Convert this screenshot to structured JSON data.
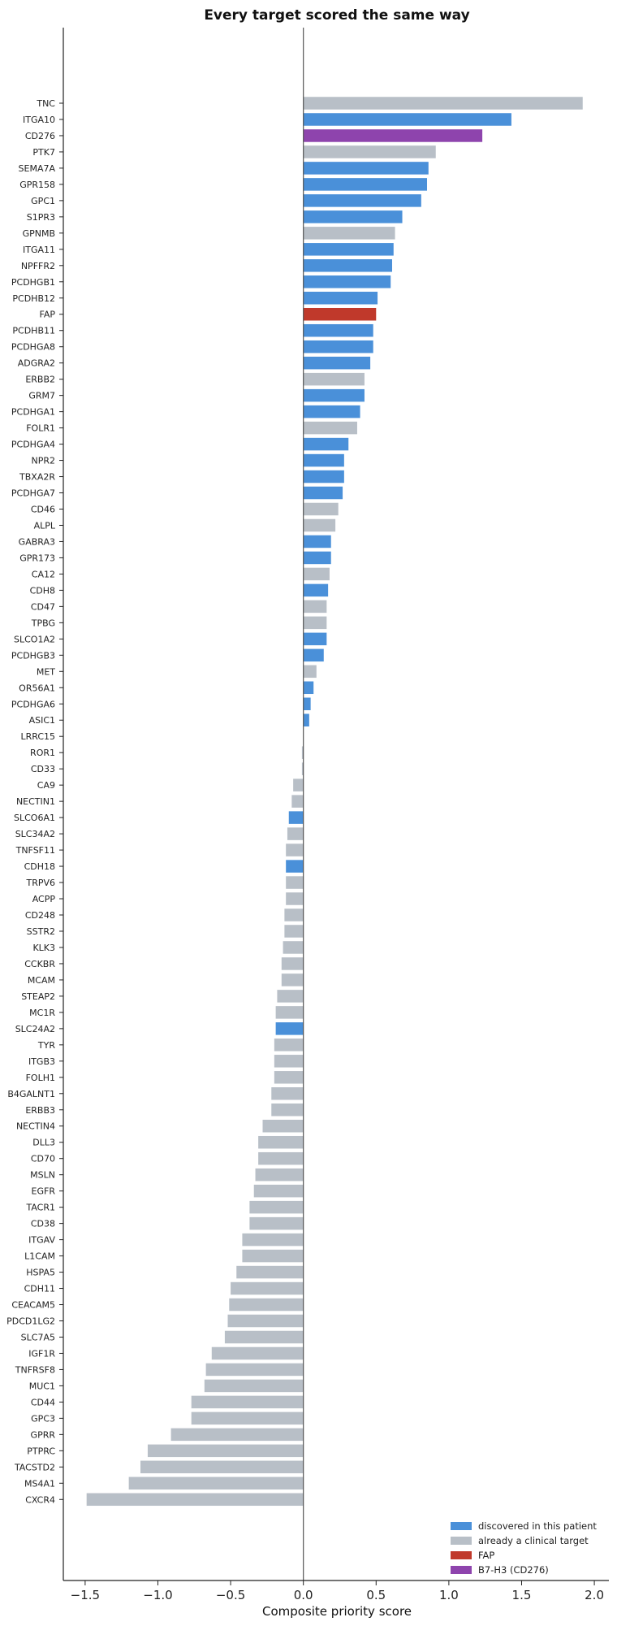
{
  "chart_data": {
    "type": "bar",
    "orientation": "horizontal",
    "title": "Every target scored the same way",
    "xlabel": "Composite priority score",
    "ylabel": "",
    "xlim": [
      -1.65,
      2.1
    ],
    "xticks": [
      -1.5,
      -1.0,
      -0.5,
      0.0,
      0.5,
      1.0,
      1.5,
      2.0
    ],
    "xtick_labels": [
      "−1.5",
      "−1.0",
      "−0.5",
      "0.0",
      "0.5",
      "1.0",
      "1.5",
      "2.0"
    ],
    "grid": false,
    "legend_position": "bottom-right",
    "colors": {
      "discovered": "#4a90d9",
      "clinical": "#b8bfc7",
      "fap": "#c0392b",
      "b7h3": "#8e44ad",
      "zero_line": "#555555",
      "axis": "#222222"
    },
    "legend": [
      {
        "key": "discovered",
        "label": "discovered in this patient"
      },
      {
        "key": "clinical",
        "label": "already a clinical target"
      },
      {
        "key": "fap",
        "label": "FAP"
      },
      {
        "key": "b7h3",
        "label": "B7-H3 (CD276)"
      }
    ],
    "bars": [
      {
        "label": "TNC",
        "value": 1.92,
        "group": "clinical"
      },
      {
        "label": "ITGA10",
        "value": 1.43,
        "group": "discovered"
      },
      {
        "label": "CD276",
        "value": 1.23,
        "group": "b7h3"
      },
      {
        "label": "PTK7",
        "value": 0.91,
        "group": "clinical"
      },
      {
        "label": "SEMA7A",
        "value": 0.86,
        "group": "discovered"
      },
      {
        "label": "GPR158",
        "value": 0.85,
        "group": "discovered"
      },
      {
        "label": "GPC1",
        "value": 0.81,
        "group": "discovered"
      },
      {
        "label": "S1PR3",
        "value": 0.68,
        "group": "discovered"
      },
      {
        "label": "GPNMB",
        "value": 0.63,
        "group": "clinical"
      },
      {
        "label": "ITGA11",
        "value": 0.62,
        "group": "discovered"
      },
      {
        "label": "NPFFR2",
        "value": 0.61,
        "group": "discovered"
      },
      {
        "label": "PCDHGB1",
        "value": 0.6,
        "group": "discovered"
      },
      {
        "label": "PCDHB12",
        "value": 0.51,
        "group": "discovered"
      },
      {
        "label": "FAP",
        "value": 0.5,
        "group": "fap"
      },
      {
        "label": "PCDHB11",
        "value": 0.48,
        "group": "discovered"
      },
      {
        "label": "PCDHGA8",
        "value": 0.48,
        "group": "discovered"
      },
      {
        "label": "ADGRA2",
        "value": 0.46,
        "group": "discovered"
      },
      {
        "label": "ERBB2",
        "value": 0.42,
        "group": "clinical"
      },
      {
        "label": "GRM7",
        "value": 0.42,
        "group": "discovered"
      },
      {
        "label": "PCDHGA1",
        "value": 0.39,
        "group": "discovered"
      },
      {
        "label": "FOLR1",
        "value": 0.37,
        "group": "clinical"
      },
      {
        "label": "PCDHGA4",
        "value": 0.31,
        "group": "discovered"
      },
      {
        "label": "NPR2",
        "value": 0.28,
        "group": "discovered"
      },
      {
        "label": "TBXA2R",
        "value": 0.28,
        "group": "discovered"
      },
      {
        "label": "PCDHGA7",
        "value": 0.27,
        "group": "discovered"
      },
      {
        "label": "CD46",
        "value": 0.24,
        "group": "clinical"
      },
      {
        "label": "ALPL",
        "value": 0.22,
        "group": "clinical"
      },
      {
        "label": "GABRA3",
        "value": 0.19,
        "group": "discovered"
      },
      {
        "label": "GPR173",
        "value": 0.19,
        "group": "discovered"
      },
      {
        "label": "CA12",
        "value": 0.18,
        "group": "clinical"
      },
      {
        "label": "CDH8",
        "value": 0.17,
        "group": "discovered"
      },
      {
        "label": "CD47",
        "value": 0.16,
        "group": "clinical"
      },
      {
        "label": "TPBG",
        "value": 0.16,
        "group": "clinical"
      },
      {
        "label": "SLCO1A2",
        "value": 0.16,
        "group": "discovered"
      },
      {
        "label": "PCDHGB3",
        "value": 0.14,
        "group": "discovered"
      },
      {
        "label": "MET",
        "value": 0.09,
        "group": "clinical"
      },
      {
        "label": "OR56A1",
        "value": 0.07,
        "group": "discovered"
      },
      {
        "label": "PCDHGA6",
        "value": 0.05,
        "group": "discovered"
      },
      {
        "label": "ASIC1",
        "value": 0.04,
        "group": "discovered"
      },
      {
        "label": "LRRC15",
        "value": 0.0,
        "group": "clinical"
      },
      {
        "label": "ROR1",
        "value": -0.01,
        "group": "clinical"
      },
      {
        "label": "CD33",
        "value": -0.01,
        "group": "clinical"
      },
      {
        "label": "CA9",
        "value": -0.07,
        "group": "clinical"
      },
      {
        "label": "NECTIN1",
        "value": -0.08,
        "group": "clinical"
      },
      {
        "label": "SLCO6A1",
        "value": -0.1,
        "group": "discovered"
      },
      {
        "label": "SLC34A2",
        "value": -0.11,
        "group": "clinical"
      },
      {
        "label": "TNFSF11",
        "value": -0.12,
        "group": "clinical"
      },
      {
        "label": "CDH18",
        "value": -0.12,
        "group": "discovered"
      },
      {
        "label": "TRPV6",
        "value": -0.12,
        "group": "clinical"
      },
      {
        "label": "ACPP",
        "value": -0.12,
        "group": "clinical"
      },
      {
        "label": "CD248",
        "value": -0.13,
        "group": "clinical"
      },
      {
        "label": "SSTR2",
        "value": -0.13,
        "group": "clinical"
      },
      {
        "label": "KLK3",
        "value": -0.14,
        "group": "clinical"
      },
      {
        "label": "CCKBR",
        "value": -0.15,
        "group": "clinical"
      },
      {
        "label": "MCAM",
        "value": -0.15,
        "group": "clinical"
      },
      {
        "label": "STEAP2",
        "value": -0.18,
        "group": "clinical"
      },
      {
        "label": "MC1R",
        "value": -0.19,
        "group": "clinical"
      },
      {
        "label": "SLC24A2",
        "value": -0.19,
        "group": "discovered"
      },
      {
        "label": "TYR",
        "value": -0.2,
        "group": "clinical"
      },
      {
        "label": "ITGB3",
        "value": -0.2,
        "group": "clinical"
      },
      {
        "label": "FOLH1",
        "value": -0.2,
        "group": "clinical"
      },
      {
        "label": "B4GALNT1",
        "value": -0.22,
        "group": "clinical"
      },
      {
        "label": "ERBB3",
        "value": -0.22,
        "group": "clinical"
      },
      {
        "label": "NECTIN4",
        "value": -0.28,
        "group": "clinical"
      },
      {
        "label": "DLL3",
        "value": -0.31,
        "group": "clinical"
      },
      {
        "label": "CD70",
        "value": -0.31,
        "group": "clinical"
      },
      {
        "label": "MSLN",
        "value": -0.33,
        "group": "clinical"
      },
      {
        "label": "EGFR",
        "value": -0.34,
        "group": "clinical"
      },
      {
        "label": "TACR1",
        "value": -0.37,
        "group": "clinical"
      },
      {
        "label": "CD38",
        "value": -0.37,
        "group": "clinical"
      },
      {
        "label": "ITGAV",
        "value": -0.42,
        "group": "clinical"
      },
      {
        "label": "L1CAM",
        "value": -0.42,
        "group": "clinical"
      },
      {
        "label": "HSPA5",
        "value": -0.46,
        "group": "clinical"
      },
      {
        "label": "CDH11",
        "value": -0.5,
        "group": "clinical"
      },
      {
        "label": "CEACAM5",
        "value": -0.51,
        "group": "clinical"
      },
      {
        "label": "PDCD1LG2",
        "value": -0.52,
        "group": "clinical"
      },
      {
        "label": "SLC7A5",
        "value": -0.54,
        "group": "clinical"
      },
      {
        "label": "IGF1R",
        "value": -0.63,
        "group": "clinical"
      },
      {
        "label": "TNFRSF8",
        "value": -0.67,
        "group": "clinical"
      },
      {
        "label": "MUC1",
        "value": -0.68,
        "group": "clinical"
      },
      {
        "label": "CD44",
        "value": -0.77,
        "group": "clinical"
      },
      {
        "label": "GPC3",
        "value": -0.77,
        "group": "clinical"
      },
      {
        "label": "GPRR",
        "value": -0.91,
        "group": "clinical"
      },
      {
        "label": "PTPRC",
        "value": -1.07,
        "group": "clinical"
      },
      {
        "label": "TACSTD2",
        "value": -1.12,
        "group": "clinical"
      },
      {
        "label": "MS4A1",
        "value": -1.2,
        "group": "clinical"
      },
      {
        "label": "CXCR4",
        "value": -1.49,
        "group": "clinical"
      }
    ]
  }
}
